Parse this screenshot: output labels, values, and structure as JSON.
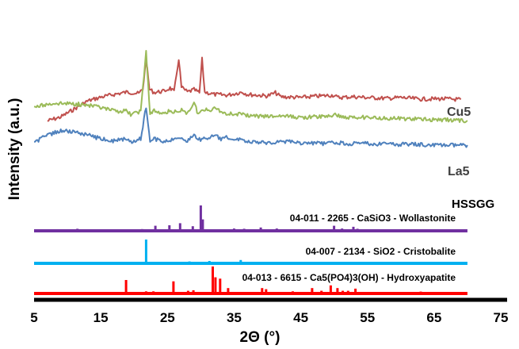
{
  "chart_data": {
    "type": "line",
    "xlabel": "2Θ (°)",
    "ylabel": "Intensity (a.u.)",
    "xlim": [
      5,
      75
    ],
    "xticks": [
      5,
      15,
      25,
      35,
      45,
      55,
      65,
      75
    ],
    "series": [
      {
        "name": "Cu5",
        "color": "#C0504D",
        "baseline_range": [
          8.5,
          70
        ],
        "points": [
          [
            7,
            305
          ],
          [
            9,
            295
          ],
          [
            11,
            275
          ],
          [
            13,
            255
          ],
          [
            15,
            245
          ],
          [
            17,
            238
          ],
          [
            19,
            232
          ],
          [
            20.7,
            236
          ],
          [
            21.3,
            225
          ],
          [
            21.8,
            150
          ],
          [
            22.3,
            225
          ],
          [
            23,
            233
          ],
          [
            24.5,
            230
          ],
          [
            25.4,
            222
          ],
          [
            26,
            232
          ],
          [
            26.7,
            148
          ],
          [
            27.1,
            220
          ],
          [
            28,
            232
          ],
          [
            29,
            226
          ],
          [
            29.8,
            234
          ],
          [
            30.2,
            150
          ],
          [
            30.6,
            232
          ],
          [
            32,
            238
          ],
          [
            34,
            240
          ],
          [
            36.2,
            232
          ],
          [
            37,
            238
          ],
          [
            40,
            242
          ],
          [
            41.2,
            234
          ],
          [
            42,
            244
          ],
          [
            45,
            246
          ],
          [
            47,
            243
          ],
          [
            50,
            240
          ],
          [
            50.5,
            246
          ],
          [
            53,
            244
          ],
          [
            55,
            246
          ],
          [
            58,
            248
          ],
          [
            60,
            246
          ],
          [
            63,
            250
          ],
          [
            66,
            249
          ],
          [
            69,
            251
          ]
        ]
      },
      {
        "name": "La5",
        "color": "#9BBB59",
        "baseline_range": [
          5,
          70
        ],
        "points": [
          [
            5,
            270
          ],
          [
            8,
            260
          ],
          [
            11,
            262
          ],
          [
            13,
            265
          ],
          [
            15,
            272
          ],
          [
            17,
            280
          ],
          [
            18.8,
            280
          ],
          [
            19.5,
            288
          ],
          [
            21,
            282
          ],
          [
            21.8,
            130
          ],
          [
            22.4,
            290
          ],
          [
            23,
            280
          ],
          [
            24,
            286
          ],
          [
            25.5,
            280
          ],
          [
            26.8,
            285
          ],
          [
            27.3,
            275
          ],
          [
            28,
            286
          ],
          [
            29,
            258
          ],
          [
            29.6,
            288
          ],
          [
            30,
            280
          ],
          [
            31.5,
            276
          ],
          [
            32.4,
            272
          ],
          [
            33,
            282
          ],
          [
            34,
            286
          ],
          [
            36,
            288
          ],
          [
            37,
            292
          ],
          [
            40,
            294
          ],
          [
            42,
            292
          ],
          [
            45,
            296
          ],
          [
            48,
            294
          ],
          [
            50.5,
            290
          ],
          [
            51.5,
            296
          ],
          [
            55,
            296
          ],
          [
            58,
            298
          ],
          [
            62,
            300
          ],
          [
            66,
            302
          ],
          [
            70,
            304
          ]
        ]
      },
      {
        "name": "HSSGG",
        "color": "#4F81BD",
        "baseline_range": [
          5,
          70
        ],
        "points": [
          [
            5,
            360
          ],
          [
            7,
            340
          ],
          [
            9,
            330
          ],
          [
            11,
            332
          ],
          [
            13,
            340
          ],
          [
            15,
            350
          ],
          [
            17,
            355
          ],
          [
            18.8,
            350
          ],
          [
            19.5,
            358
          ],
          [
            21,
            350
          ],
          [
            21.8,
            270
          ],
          [
            22.4,
            358
          ],
          [
            23,
            350
          ],
          [
            24.5,
            356
          ],
          [
            26,
            352
          ],
          [
            27,
            345
          ],
          [
            28,
            355
          ],
          [
            29,
            340
          ],
          [
            29.8,
            352
          ],
          [
            31,
            348
          ],
          [
            32.2,
            342
          ],
          [
            33.2,
            352
          ],
          [
            34,
            345
          ],
          [
            35,
            355
          ],
          [
            36,
            348
          ],
          [
            37,
            358
          ],
          [
            40,
            360
          ],
          [
            42,
            356
          ],
          [
            45,
            360
          ],
          [
            48,
            362
          ],
          [
            50,
            360
          ],
          [
            52,
            362
          ],
          [
            55,
            362
          ],
          [
            58,
            364
          ],
          [
            62,
            364
          ],
          [
            66,
            366
          ],
          [
            70,
            366
          ]
        ]
      }
    ],
    "reference_patterns": [
      {
        "label": "04-011 - 2265 - CaSiO3 - Wollastonite",
        "color": "#7030A0",
        "baseline_range": [
          5,
          70
        ],
        "peaks": [
          [
            11.5,
            0.08
          ],
          [
            21.2,
            0.07
          ],
          [
            23.2,
            0.2
          ],
          [
            25.3,
            0.22
          ],
          [
            26.9,
            0.3
          ],
          [
            28.8,
            0.18
          ],
          [
            30.0,
            1.0
          ],
          [
            30.3,
            0.45
          ],
          [
            31.7,
            0.06
          ],
          [
            33.0,
            0.06
          ],
          [
            35.0,
            0.09
          ],
          [
            36.5,
            0.08
          ],
          [
            39.0,
            0.13
          ],
          [
            41.4,
            0.09
          ],
          [
            44.5,
            0.06
          ],
          [
            47.5,
            0.06
          ],
          [
            50.0,
            0.2
          ],
          [
            51.2,
            0.09
          ],
          [
            52.9,
            0.16
          ],
          [
            53.5,
            0.08
          ],
          [
            55.5,
            0.05
          ],
          [
            57.2,
            0.05
          ],
          [
            60.0,
            0.05
          ],
          [
            62.2,
            0.04
          ],
          [
            66.0,
            0.04
          ]
        ]
      },
      {
        "label": "04-007 - 2134 - SiO2 - Cristobalite",
        "color": "#00B0F0",
        "baseline_range": [
          5,
          70
        ],
        "peaks": [
          [
            21.8,
            1.0
          ],
          [
            28.3,
            0.08
          ],
          [
            31.3,
            0.1
          ],
          [
            36.0,
            0.14
          ],
          [
            42.5,
            0.04
          ],
          [
            44.8,
            0.04
          ],
          [
            46.9,
            0.05
          ],
          [
            48.5,
            0.05
          ],
          [
            57.0,
            0.04
          ],
          [
            60.5,
            0.04
          ],
          [
            65.0,
            0.04
          ]
        ]
      },
      {
        "label": "04-013 - 6615 - Ca5(PO4)3(OH) - Hydroxyapatite",
        "color": "#FF0000",
        "baseline_range": [
          5,
          70
        ],
        "peaks": [
          [
            10.8,
            0.06
          ],
          [
            16.8,
            0.04
          ],
          [
            18.8,
            0.5
          ],
          [
            21.8,
            0.08
          ],
          [
            22.9,
            0.08
          ],
          [
            25.9,
            0.45
          ],
          [
            28.1,
            0.1
          ],
          [
            28.9,
            0.12
          ],
          [
            31.8,
            1.0
          ],
          [
            32.2,
            0.6
          ],
          [
            32.9,
            0.55
          ],
          [
            34.1,
            0.2
          ],
          [
            35.5,
            0.06
          ],
          [
            39.2,
            0.2
          ],
          [
            39.8,
            0.16
          ],
          [
            42.0,
            0.06
          ],
          [
            43.8,
            0.08
          ],
          [
            45.3,
            0.06
          ],
          [
            46.7,
            0.2
          ],
          [
            48.1,
            0.1
          ],
          [
            49.5,
            0.3
          ],
          [
            50.5,
            0.2
          ],
          [
            51.3,
            0.1
          ],
          [
            52.1,
            0.1
          ],
          [
            53.2,
            0.18
          ],
          [
            55.9,
            0.06
          ],
          [
            57.1,
            0.05
          ],
          [
            61.7,
            0.05
          ],
          [
            63.0,
            0.07
          ],
          [
            64.1,
            0.06
          ],
          [
            65.0,
            0.05
          ]
        ]
      }
    ],
    "axis_range_line": [
      5,
      75
    ]
  }
}
